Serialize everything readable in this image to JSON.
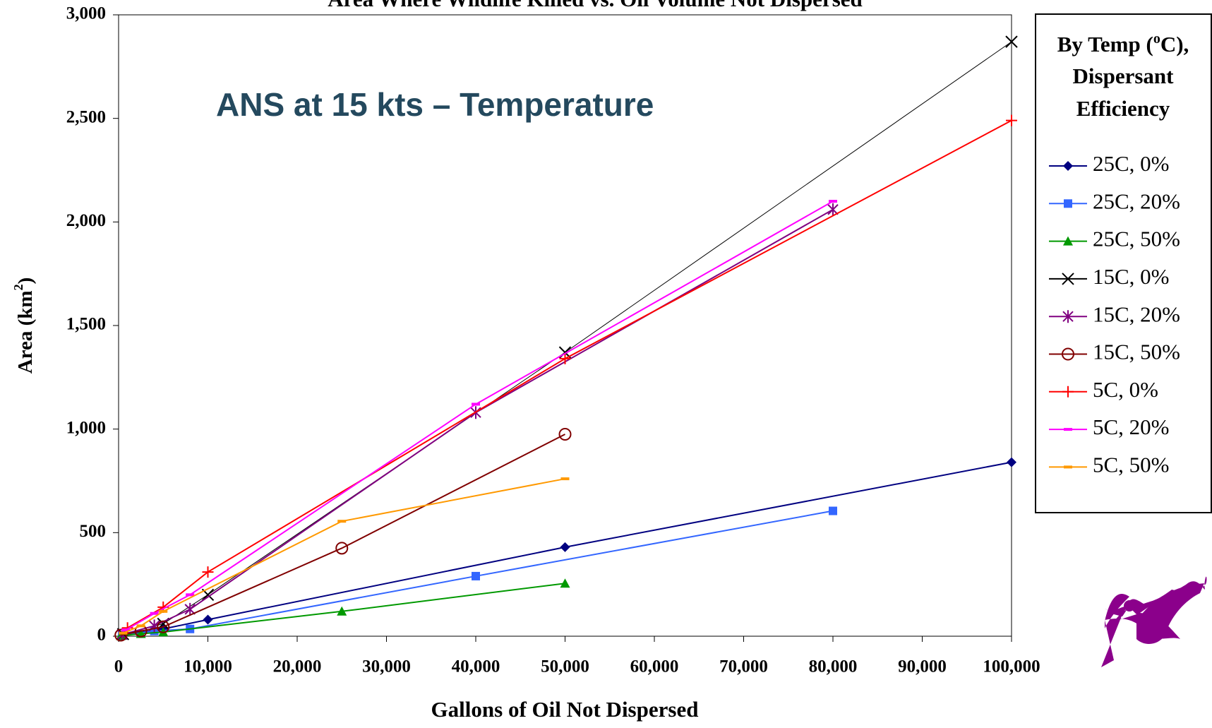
{
  "chart_data": {
    "type": "line",
    "title": "Area Where Wildlife Killed vs. Oil Volume Not Dispersed",
    "annotation": "ANS at 15 kts – Temperature",
    "x_label": "Gallons of Oil Not Dispersed",
    "y_label": [
      "Area (km",
      "2",
      ")"
    ],
    "legend_title": [
      "By Temp (",
      "o",
      "C),",
      "Dispersant",
      "Efficiency"
    ],
    "legend": "right",
    "xlim": [
      0,
      100000
    ],
    "xticks": [
      0,
      {
        "value": 10000,
        "label": "10,000"
      },
      {
        "value": 20000,
        "label": "20,000"
      },
      {
        "value": 30000,
        "label": "30,000"
      },
      {
        "value": 40000,
        "label": "40,000"
      },
      {
        "value": 50000,
        "label": "50,000"
      },
      {
        "value": 60000,
        "label": "60,000"
      },
      {
        "value": 70000,
        "label": "70,000"
      },
      {
        "value": 80000,
        "label": "80,000"
      },
      {
        "value": 90000,
        "label": "90,000"
      },
      {
        "value": 100000,
        "label": "100,000"
      }
    ],
    "ylim": [
      0,
      3000
    ],
    "yticks": [
      0,
      500,
      {
        "value": 1000,
        "label": "1,000"
      },
      {
        "value": 1500,
        "label": "1,500"
      },
      {
        "value": 2000,
        "label": "2,000"
      },
      {
        "value": 2500,
        "label": "2,500"
      },
      {
        "value": 3000,
        "label": "3,000"
      }
    ],
    "series": [
      {
        "name": "25C, 0%",
        "color": "#000080",
        "marker": "diamond",
        "x": [
          500,
          5000,
          10000,
          50000,
          100000
        ],
        "values": [
          5,
          35,
          80,
          430,
          840
        ]
      },
      {
        "name": "25C, 20%",
        "color": "#3366ff",
        "marker": "square",
        "x": [
          400,
          4000,
          8000,
          40000,
          80000
        ],
        "values": [
          3,
          25,
          35,
          290,
          605
        ]
      },
      {
        "name": "25C, 50%",
        "color": "#009900",
        "marker": "triangle",
        "x": [
          250,
          2500,
          5000,
          25000,
          50000
        ],
        "values": [
          2,
          12,
          20,
          120,
          255
        ]
      },
      {
        "name": "15C, 0%",
        "color": "#000000",
        "marker": "x",
        "x": [
          500,
          5000,
          10000,
          50000,
          100000
        ],
        "values": [
          10,
          60,
          200,
          1370,
          2870
        ]
      },
      {
        "name": "15C, 20%",
        "color": "#800080",
        "marker": "star",
        "x": [
          400,
          4000,
          8000,
          40000,
          80000
        ],
        "values": [
          8,
          50,
          130,
          1080,
          2060
        ]
      },
      {
        "name": "15C, 50%",
        "color": "#800000",
        "marker": "circle",
        "x": [
          250,
          2500,
          5000,
          25000,
          50000
        ],
        "values": [
          5,
          25,
          45,
          425,
          975
        ]
      },
      {
        "name": "5C, 0%",
        "color": "#ff0000",
        "marker": "plus",
        "x": [
          1000,
          5000,
          10000,
          50000,
          100000
        ],
        "values": [
          40,
          140,
          310,
          1340,
          2490
        ]
      },
      {
        "name": "5C, 20%",
        "color": "#ff00ff",
        "marker": "dash",
        "x": [
          800,
          4000,
          8000,
          40000,
          80000
        ],
        "values": [
          30,
          110,
          200,
          1120,
          2100
        ]
      },
      {
        "name": "5C, 50%",
        "color": "#ff9900",
        "marker": "dash",
        "x": [
          500,
          2500,
          5000,
          25000,
          50000
        ],
        "values": [
          15,
          50,
          120,
          555,
          760
        ]
      }
    ]
  }
}
